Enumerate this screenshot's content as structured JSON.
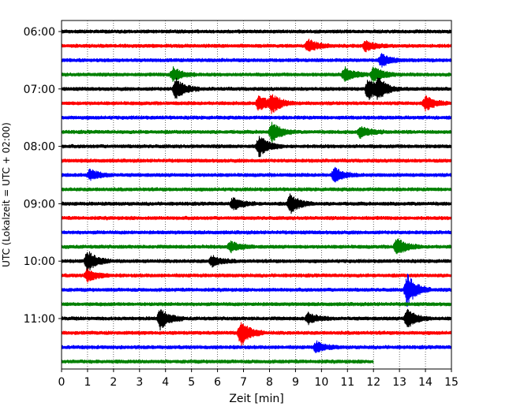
{
  "chart_data": {
    "type": "line",
    "title": "",
    "xlabel": "Zeit  [min]",
    "ylabel": "UTC (Lokalzeit = UTC + 02:00)",
    "xlim": [
      0,
      15
    ],
    "x_ticks": [
      "0",
      "1",
      "2",
      "3",
      "4",
      "5",
      "6",
      "7",
      "8",
      "9",
      "10",
      "11",
      "12",
      "13",
      "14",
      "15"
    ],
    "y_ticks": [
      "06:00",
      "07:00",
      "08:00",
      "09:00",
      "10:00",
      "11:00"
    ],
    "grid": "vertical dotted",
    "legend": "none",
    "color_cycle": [
      "#000000",
      "#ff0000",
      "#0000ff",
      "#008000"
    ],
    "series": [
      {
        "start": "06:00",
        "color": "#000000",
        "end_min": 15,
        "events": []
      },
      {
        "start": "06:15",
        "color": "#ff0000",
        "end_min": 15,
        "events": [
          {
            "t": 9.5,
            "amp": 0.35
          },
          {
            "t": 11.7,
            "amp": 0.3
          }
        ]
      },
      {
        "start": "06:30",
        "color": "#0000ff",
        "end_min": 15,
        "events": [
          {
            "t": 12.3,
            "amp": 0.35
          }
        ]
      },
      {
        "start": "06:45",
        "color": "#008000",
        "end_min": 15,
        "events": [
          {
            "t": 4.3,
            "amp": 0.4
          },
          {
            "t": 10.9,
            "amp": 0.4
          },
          {
            "t": 12.0,
            "amp": 0.45
          }
        ]
      },
      {
        "start": "07:00",
        "color": "#000000",
        "end_min": 15,
        "events": [
          {
            "t": 4.4,
            "amp": 0.6
          },
          {
            "t": 11.8,
            "amp": 0.65
          },
          {
            "t": 12.2,
            "amp": 0.5
          }
        ]
      },
      {
        "start": "07:15",
        "color": "#ff0000",
        "end_min": 15,
        "events": [
          {
            "t": 7.6,
            "amp": 0.45
          },
          {
            "t": 8.1,
            "amp": 0.5
          },
          {
            "t": 14.0,
            "amp": 0.4
          }
        ]
      },
      {
        "start": "07:30",
        "color": "#0000ff",
        "end_min": 15,
        "events": []
      },
      {
        "start": "07:45",
        "color": "#008000",
        "end_min": 15,
        "events": [
          {
            "t": 8.1,
            "amp": 0.55
          },
          {
            "t": 11.5,
            "amp": 0.35
          }
        ]
      },
      {
        "start": "08:00",
        "color": "#000000",
        "end_min": 15,
        "events": [
          {
            "t": 7.6,
            "amp": 0.6
          }
        ]
      },
      {
        "start": "08:15",
        "color": "#ff0000",
        "end_min": 15,
        "events": []
      },
      {
        "start": "08:30",
        "color": "#0000ff",
        "end_min": 15,
        "events": [
          {
            "t": 1.1,
            "amp": 0.3
          },
          {
            "t": 10.5,
            "amp": 0.4
          }
        ]
      },
      {
        "start": "08:45",
        "color": "#008000",
        "end_min": 15,
        "events": []
      },
      {
        "start": "09:00",
        "color": "#000000",
        "end_min": 15,
        "events": [
          {
            "t": 6.6,
            "amp": 0.35
          },
          {
            "t": 8.8,
            "amp": 0.55
          }
        ]
      },
      {
        "start": "09:15",
        "color": "#ff0000",
        "end_min": 15,
        "events": []
      },
      {
        "start": "09:30",
        "color": "#0000ff",
        "end_min": 15,
        "events": []
      },
      {
        "start": "09:45",
        "color": "#008000",
        "end_min": 15,
        "events": [
          {
            "t": 6.5,
            "amp": 0.3
          },
          {
            "t": 12.9,
            "amp": 0.5
          }
        ]
      },
      {
        "start": "10:00",
        "color": "#000000",
        "end_min": 15,
        "events": [
          {
            "t": 1.0,
            "amp": 0.6
          },
          {
            "t": 5.8,
            "amp": 0.3
          }
        ]
      },
      {
        "start": "10:15",
        "color": "#ff0000",
        "end_min": 15,
        "events": [
          {
            "t": 1.0,
            "amp": 0.35
          }
        ]
      },
      {
        "start": "10:30",
        "color": "#0000ff",
        "end_min": 15,
        "events": [
          {
            "t": 13.3,
            "amp": 0.9
          }
        ]
      },
      {
        "start": "10:45",
        "color": "#008000",
        "end_min": 15,
        "events": []
      },
      {
        "start": "11:00",
        "color": "#000000",
        "end_min": 15,
        "events": [
          {
            "t": 3.8,
            "amp": 0.6
          },
          {
            "t": 9.5,
            "amp": 0.3
          },
          {
            "t": 13.3,
            "amp": 0.55
          }
        ]
      },
      {
        "start": "11:15",
        "color": "#ff0000",
        "end_min": 15,
        "events": [
          {
            "t": 6.9,
            "amp": 0.75
          }
        ]
      },
      {
        "start": "11:30",
        "color": "#0000ff",
        "end_min": 15,
        "events": [
          {
            "t": 9.8,
            "amp": 0.3
          }
        ]
      },
      {
        "start": "11:45",
        "color": "#008000",
        "end_min": 12,
        "events": []
      }
    ]
  }
}
